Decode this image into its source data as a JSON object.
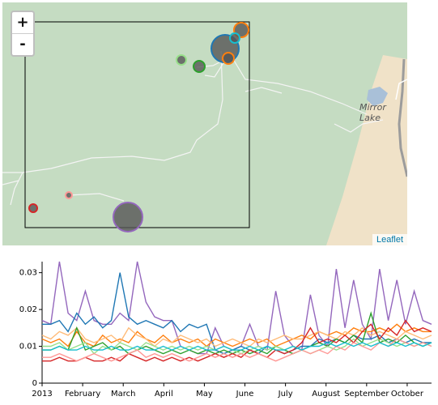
{
  "map": {
    "zoom_in_label": "+",
    "zoom_out_label": "-",
    "attribution": "Leaflet",
    "place_label": "Mirror Lake",
    "colors": {
      "forest": "#c5dcc2",
      "clearing": "#f0e2c8",
      "lake": "#a9c0d8",
      "road": "#9c9c9c",
      "trail": "#ffffff"
    },
    "sensors": [
      {
        "color": "#1f77b4",
        "size": "large"
      },
      {
        "color": "#ff7f0e",
        "size": "small"
      },
      {
        "color": "#ff7f0e",
        "size": "small"
      },
      {
        "color": "#17becf",
        "size": "small"
      },
      {
        "color": "#98df8a",
        "size": "small"
      },
      {
        "color": "#2ca02c",
        "size": "small"
      },
      {
        "color": "#d62728",
        "size": "small"
      },
      {
        "color": "#ff9896",
        "size": "small"
      },
      {
        "color": "#9467bd",
        "size": "large"
      }
    ]
  },
  "chart_data": {
    "type": "line",
    "x_ticks": [
      "2013",
      "February",
      "March",
      "April",
      "May",
      "June",
      "July",
      "August",
      "September",
      "October"
    ],
    "y_ticks": [
      "0",
      "0.01",
      "0.02",
      "0.03"
    ],
    "ylim": [
      0,
      0.033
    ],
    "series": [
      {
        "color": "#9467bd",
        "values": [
          0.017,
          0.016,
          0.033,
          0.019,
          0.017,
          0.025,
          0.017,
          0.016,
          0.016,
          0.019,
          0.017,
          0.033,
          0.022,
          0.018,
          0.017,
          0.017,
          0.01,
          0.009,
          0.008,
          0.008,
          0.015,
          0.01,
          0.009,
          0.01,
          0.016,
          0.01,
          0.009,
          0.025,
          0.013,
          0.01,
          0.009,
          0.024,
          0.013,
          0.01,
          0.031,
          0.015,
          0.028,
          0.016,
          0.012,
          0.031,
          0.017,
          0.028,
          0.016,
          0.025,
          0.017,
          0.016
        ]
      },
      {
        "color": "#1f77b4",
        "values": [
          0.016,
          0.016,
          0.017,
          0.014,
          0.019,
          0.016,
          0.018,
          0.015,
          0.017,
          0.03,
          0.018,
          0.016,
          0.017,
          0.016,
          0.015,
          0.017,
          0.014,
          0.016,
          0.015,
          0.016,
          0.009,
          0.008,
          0.009,
          0.01,
          0.009,
          0.008,
          0.01,
          0.009,
          0.008,
          0.009,
          0.01,
          0.01,
          0.012,
          0.011,
          0.012,
          0.011,
          0.013,
          0.012,
          0.012,
          0.013,
          0.011,
          0.012,
          0.011,
          0.012,
          0.011,
          0.011
        ]
      },
      {
        "color": "#ff7f0e",
        "values": [
          0.012,
          0.011,
          0.012,
          0.01,
          0.014,
          0.011,
          0.01,
          0.013,
          0.011,
          0.012,
          0.011,
          0.014,
          0.012,
          0.011,
          0.013,
          0.011,
          0.012,
          0.011,
          0.012,
          0.01,
          0.012,
          0.011,
          0.01,
          0.011,
          0.012,
          0.011,
          0.012,
          0.01,
          0.011,
          0.012,
          0.013,
          0.012,
          0.014,
          0.013,
          0.014,
          0.013,
          0.015,
          0.014,
          0.014,
          0.015,
          0.014,
          0.016,
          0.014,
          0.015,
          0.014,
          0.014
        ]
      },
      {
        "color": "#ffbb78",
        "values": [
          0.013,
          0.012,
          0.014,
          0.013,
          0.015,
          0.012,
          0.011,
          0.012,
          0.013,
          0.011,
          0.015,
          0.013,
          0.012,
          0.01,
          0.012,
          0.011,
          0.013,
          0.012,
          0.011,
          0.012,
          0.01,
          0.011,
          0.012,
          0.011,
          0.01,
          0.012,
          0.011,
          0.012,
          0.013,
          0.012,
          0.012,
          0.013,
          0.014,
          0.013,
          0.012,
          0.014,
          0.013,
          0.015,
          0.013,
          0.014,
          0.013,
          0.012,
          0.014,
          0.013,
          0.012,
          0.013
        ]
      },
      {
        "color": "#2ca02c",
        "values": [
          0.009,
          0.009,
          0.01,
          0.009,
          0.015,
          0.009,
          0.01,
          0.011,
          0.009,
          0.01,
          0.008,
          0.009,
          0.01,
          0.009,
          0.008,
          0.009,
          0.008,
          0.009,
          0.008,
          0.009,
          0.008,
          0.009,
          0.008,
          0.009,
          0.008,
          0.009,
          0.008,
          0.01,
          0.009,
          0.008,
          0.009,
          0.01,
          0.011,
          0.01,
          0.012,
          0.011,
          0.013,
          0.011,
          0.019,
          0.011,
          0.012,
          0.011,
          0.013,
          0.011,
          0.01,
          0.011
        ]
      },
      {
        "color": "#98df8a",
        "values": [
          0.01,
          0.01,
          0.011,
          0.009,
          0.01,
          0.011,
          0.008,
          0.01,
          0.009,
          0.011,
          0.01,
          0.009,
          0.011,
          0.01,
          0.009,
          0.01,
          0.009,
          0.01,
          0.009,
          0.01,
          0.009,
          0.01,
          0.009,
          0.008,
          0.009,
          0.01,
          0.009,
          0.01,
          0.009,
          0.01,
          0.009,
          0.008,
          0.009,
          0.01,
          0.009,
          0.01,
          0.012,
          0.01,
          0.011,
          0.012,
          0.011,
          0.01,
          0.011,
          0.01,
          0.011,
          0.01
        ]
      },
      {
        "color": "#d62728",
        "values": [
          0.006,
          0.006,
          0.007,
          0.006,
          0.006,
          0.007,
          0.006,
          0.006,
          0.007,
          0.006,
          0.008,
          0.007,
          0.006,
          0.007,
          0.006,
          0.007,
          0.006,
          0.007,
          0.006,
          0.007,
          0.008,
          0.007,
          0.008,
          0.007,
          0.009,
          0.008,
          0.007,
          0.009,
          0.008,
          0.009,
          0.011,
          0.015,
          0.011,
          0.012,
          0.011,
          0.013,
          0.011,
          0.014,
          0.016,
          0.012,
          0.015,
          0.013,
          0.017,
          0.014,
          0.015,
          0.014
        ]
      },
      {
        "color": "#ff9896",
        "values": [
          0.007,
          0.007,
          0.008,
          0.007,
          0.006,
          0.007,
          0.008,
          0.007,
          0.006,
          0.007,
          0.008,
          0.009,
          0.007,
          0.008,
          0.007,
          0.008,
          0.007,
          0.006,
          0.007,
          0.008,
          0.007,
          0.008,
          0.007,
          0.008,
          0.007,
          0.008,
          0.007,
          0.006,
          0.007,
          0.008,
          0.009,
          0.008,
          0.009,
          0.008,
          0.01,
          0.009,
          0.011,
          0.01,
          0.009,
          0.011,
          0.01,
          0.012,
          0.011,
          0.01,
          0.011,
          0.01
        ]
      },
      {
        "color": "#17becf",
        "values": [
          0.009,
          0.009,
          0.01,
          0.009,
          0.009,
          0.01,
          0.009,
          0.009,
          0.01,
          0.009,
          0.009,
          0.01,
          0.009,
          0.009,
          0.01,
          0.009,
          0.01,
          0.009,
          0.01,
          0.009,
          0.009,
          0.01,
          0.009,
          0.009,
          0.01,
          0.009,
          0.01,
          0.009,
          0.009,
          0.01,
          0.009,
          0.01,
          0.01,
          0.011,
          0.01,
          0.011,
          0.01,
          0.011,
          0.01,
          0.011,
          0.01,
          0.011,
          0.01,
          0.011,
          0.01,
          0.011
        ]
      }
    ]
  }
}
